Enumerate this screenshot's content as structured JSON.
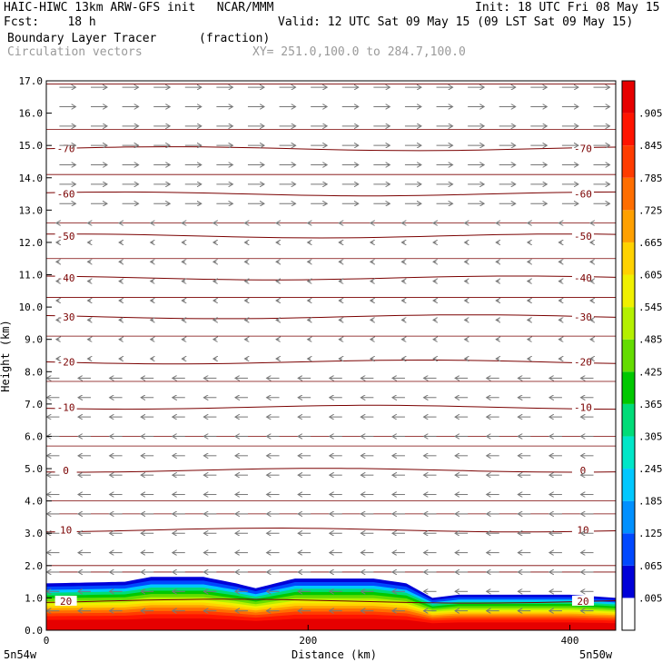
{
  "header": {
    "line1_left": "HAIC-HIWC 13km ARW-GFS init   NCAR/MMM",
    "line1_right": "Init: 18 UTC Fri 08 May 15",
    "line2_left": "Fcst:    18 h",
    "line2_right": "Valid: 12 UTC Sat 09 May 15 (09 LST Sat 09 May 15)",
    "field1_name": "Boundary Layer Tracer",
    "field1_unit": "(fraction)",
    "field2_name": "Circulation vectors",
    "xy_text": "XY= 251.0,100.0 to 284.7,100.0"
  },
  "chart_data": {
    "type": "heatmap",
    "xlabel": "Distance (km)",
    "ylabel": "Height (km)",
    "xlim": [
      0,
      435
    ],
    "ylim": [
      0,
      17
    ],
    "x_ticks": [
      "0",
      "200",
      "400"
    ],
    "x_tick_values": [
      0,
      200,
      400
    ],
    "y_ticks": [
      "0.0",
      "1.0",
      "2.0",
      "3.0",
      "4.0",
      "5.0",
      "6.0",
      "7.0",
      "8.0",
      "9.0",
      "10.0",
      "11.0",
      "12.0",
      "13.0",
      "14.0",
      "15.0",
      "16.0",
      "17.0"
    ],
    "corner_left": "5n54w",
    "corner_right": "5n50w",
    "colorbar_labels": [
      ".005",
      ".065",
      ".125",
      ".185",
      ".245",
      ".305",
      ".365",
      ".425",
      ".485",
      ".545",
      ".605",
      ".665",
      ".725",
      ".785",
      ".845",
      ".905"
    ],
    "colorbar_colors": [
      "#ffffff",
      "#0000d8",
      "#0048ff",
      "#0090ff",
      "#00c8ff",
      "#00e6c8",
      "#00dc78",
      "#00c800",
      "#64dc00",
      "#b4f000",
      "#f0f000",
      "#ffd200",
      "#ffa000",
      "#ff6e00",
      "#ff3c00",
      "#ff1400",
      "#e60000"
    ],
    "tracer_top_km": [
      [
        0,
        1.45
      ],
      [
        60,
        1.5
      ],
      [
        80,
        1.65
      ],
      [
        120,
        1.65
      ],
      [
        145,
        1.45
      ],
      [
        160,
        1.3
      ],
      [
        190,
        1.6
      ],
      [
        250,
        1.6
      ],
      [
        275,
        1.45
      ],
      [
        295,
        1.0
      ],
      [
        315,
        1.1
      ],
      [
        400,
        1.1
      ],
      [
        435,
        1.0
      ]
    ],
    "temperature_contours": [
      {
        "label": "-70",
        "km": 14.9
      },
      {
        "label": "-60",
        "km": 13.5
      },
      {
        "label": "-50",
        "km": 12.2
      },
      {
        "label": "-40",
        "km": 10.9
      },
      {
        "label": "-30",
        "km": 9.7
      },
      {
        "label": "-20",
        "km": 8.3
      },
      {
        "label": "-10",
        "km": 6.9
      },
      {
        "label": "0",
        "km": 4.95
      },
      {
        "label": "10",
        "km": 3.1
      },
      {
        "label": "20",
        "km": 0.9
      }
    ],
    "wind_rows_km": [
      16.8,
      16.2,
      15.6,
      15.0,
      14.4,
      13.8,
      13.2,
      12.6,
      12.0,
      11.4,
      10.8,
      10.2,
      9.6,
      9.0,
      8.4,
      7.8,
      7.2,
      6.6,
      6.0,
      5.4,
      4.8,
      4.2,
      3.6,
      3.0,
      2.4,
      1.8,
      1.2,
      0.6
    ]
  }
}
